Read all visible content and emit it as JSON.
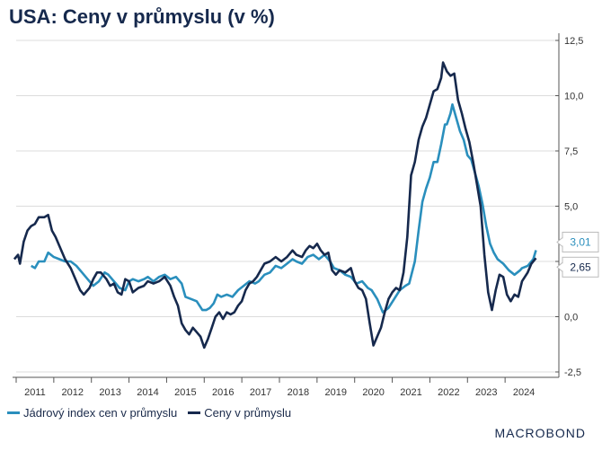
{
  "title": "USA: Ceny v průmyslu (v %)",
  "brand": "MACROBOND",
  "chart_data": {
    "type": "line",
    "ylim": [
      -2.5,
      12.5
    ],
    "yticks": [
      12.5,
      10.0,
      7.5,
      5.0,
      2.5,
      0.0,
      -2.5
    ],
    "ytick_labels": [
      "12,5",
      "10,0",
      "7,5",
      "5,0",
      "2,5",
      "0,0",
      "-2,5"
    ],
    "xlim": [
      2010.5,
      2024.5
    ],
    "xticks": [
      "2011",
      "2012",
      "2013",
      "2014",
      "2015",
      "2016",
      "2017",
      "2018",
      "2019",
      "2020",
      "2021",
      "2022",
      "2023",
      "2024"
    ],
    "grid": true,
    "legend_position": "bottom-left",
    "end_labels": [
      "3,01",
      "2,65"
    ],
    "series": [
      {
        "name": "Jádrový index cen v průmyslu",
        "color": "#2a8fbd",
        "end_label": "3,01",
        "points": [
          [
            2010.9,
            2.3
          ],
          [
            2011.0,
            2.2
          ],
          [
            2011.1,
            2.5
          ],
          [
            2011.25,
            2.5
          ],
          [
            2011.35,
            2.9
          ],
          [
            2011.5,
            2.7
          ],
          [
            2011.65,
            2.6
          ],
          [
            2011.8,
            2.5
          ],
          [
            2011.95,
            2.5
          ],
          [
            2012.1,
            2.3
          ],
          [
            2012.25,
            2.0
          ],
          [
            2012.4,
            1.7
          ],
          [
            2012.55,
            1.4
          ],
          [
            2012.7,
            1.6
          ],
          [
            2012.85,
            2.0
          ],
          [
            2012.95,
            1.9
          ],
          [
            2013.1,
            1.6
          ],
          [
            2013.25,
            1.3
          ],
          [
            2013.4,
            1.2
          ],
          [
            2013.5,
            1.6
          ],
          [
            2013.6,
            1.7
          ],
          [
            2013.75,
            1.6
          ],
          [
            2013.9,
            1.7
          ],
          [
            2014.0,
            1.8
          ],
          [
            2014.15,
            1.6
          ],
          [
            2014.3,
            1.8
          ],
          [
            2014.45,
            1.9
          ],
          [
            2014.6,
            1.7
          ],
          [
            2014.75,
            1.8
          ],
          [
            2014.9,
            1.5
          ],
          [
            2015.0,
            0.9
          ],
          [
            2015.15,
            0.8
          ],
          [
            2015.3,
            0.7
          ],
          [
            2015.45,
            0.3
          ],
          [
            2015.55,
            0.3
          ],
          [
            2015.65,
            0.4
          ],
          [
            2015.75,
            0.6
          ],
          [
            2015.85,
            1.0
          ],
          [
            2015.95,
            0.9
          ],
          [
            2016.1,
            1.0
          ],
          [
            2016.25,
            0.9
          ],
          [
            2016.4,
            1.2
          ],
          [
            2016.55,
            1.4
          ],
          [
            2016.7,
            1.6
          ],
          [
            2016.85,
            1.5
          ],
          [
            2016.95,
            1.6
          ],
          [
            2017.1,
            1.9
          ],
          [
            2017.25,
            2.0
          ],
          [
            2017.4,
            2.3
          ],
          [
            2017.55,
            2.2
          ],
          [
            2017.7,
            2.4
          ],
          [
            2017.85,
            2.6
          ],
          [
            2017.95,
            2.5
          ],
          [
            2018.1,
            2.4
          ],
          [
            2018.25,
            2.7
          ],
          [
            2018.4,
            2.8
          ],
          [
            2018.55,
            2.6
          ],
          [
            2018.7,
            2.8
          ],
          [
            2018.85,
            2.5
          ],
          [
            2018.95,
            2.2
          ],
          [
            2019.1,
            2.1
          ],
          [
            2019.25,
            1.9
          ],
          [
            2019.4,
            1.8
          ],
          [
            2019.55,
            1.5
          ],
          [
            2019.7,
            1.6
          ],
          [
            2019.85,
            1.3
          ],
          [
            2019.95,
            1.2
          ],
          [
            2020.1,
            0.8
          ],
          [
            2020.25,
            0.2
          ],
          [
            2020.4,
            0.4
          ],
          [
            2020.55,
            0.8
          ],
          [
            2020.7,
            1.2
          ],
          [
            2020.85,
            1.4
          ],
          [
            2020.95,
            1.5
          ],
          [
            2021.1,
            2.5
          ],
          [
            2021.2,
            3.9
          ],
          [
            2021.3,
            5.2
          ],
          [
            2021.4,
            5.8
          ],
          [
            2021.5,
            6.3
          ],
          [
            2021.6,
            7.0
          ],
          [
            2021.7,
            7.0
          ],
          [
            2021.8,
            7.8
          ],
          [
            2021.9,
            8.7
          ],
          [
            2021.95,
            8.7
          ],
          [
            2022.05,
            9.2
          ],
          [
            2022.1,
            9.6
          ],
          [
            2022.2,
            9.0
          ],
          [
            2022.3,
            8.4
          ],
          [
            2022.4,
            8.0
          ],
          [
            2022.5,
            7.3
          ],
          [
            2022.6,
            7.1
          ],
          [
            2022.7,
            6.5
          ],
          [
            2022.8,
            5.9
          ],
          [
            2022.9,
            5.1
          ],
          [
            2023.0,
            4.1
          ],
          [
            2023.1,
            3.3
          ],
          [
            2023.2,
            2.9
          ],
          [
            2023.3,
            2.6
          ],
          [
            2023.45,
            2.4
          ],
          [
            2023.6,
            2.1
          ],
          [
            2023.75,
            1.9
          ],
          [
            2023.9,
            2.1
          ],
          [
            2023.95,
            2.2
          ],
          [
            2024.1,
            2.3
          ],
          [
            2024.25,
            2.6
          ],
          [
            2024.32,
            3.01
          ]
        ]
      },
      {
        "name": "Ceny v průmyslu",
        "color": "#16294d",
        "end_label": "2,65",
        "points": [
          [
            2010.45,
            2.6
          ],
          [
            2010.55,
            2.8
          ],
          [
            2010.6,
            2.4
          ],
          [
            2010.7,
            3.4
          ],
          [
            2010.8,
            3.9
          ],
          [
            2010.9,
            4.1
          ],
          [
            2011.0,
            4.2
          ],
          [
            2011.1,
            4.5
          ],
          [
            2011.25,
            4.5
          ],
          [
            2011.35,
            4.6
          ],
          [
            2011.45,
            3.9
          ],
          [
            2011.55,
            3.6
          ],
          [
            2011.65,
            3.2
          ],
          [
            2011.8,
            2.6
          ],
          [
            2011.95,
            2.2
          ],
          [
            2012.1,
            1.6
          ],
          [
            2012.2,
            1.2
          ],
          [
            2012.3,
            1.0
          ],
          [
            2012.45,
            1.3
          ],
          [
            2012.55,
            1.7
          ],
          [
            2012.65,
            2.0
          ],
          [
            2012.75,
            2.0
          ],
          [
            2012.9,
            1.7
          ],
          [
            2013.0,
            1.4
          ],
          [
            2013.1,
            1.5
          ],
          [
            2013.2,
            1.1
          ],
          [
            2013.3,
            1.0
          ],
          [
            2013.4,
            1.7
          ],
          [
            2013.5,
            1.6
          ],
          [
            2013.6,
            1.1
          ],
          [
            2013.75,
            1.3
          ],
          [
            2013.9,
            1.4
          ],
          [
            2014.0,
            1.6
          ],
          [
            2014.15,
            1.5
          ],
          [
            2014.3,
            1.6
          ],
          [
            2014.45,
            1.8
          ],
          [
            2014.6,
            1.4
          ],
          [
            2014.7,
            0.9
          ],
          [
            2014.8,
            0.5
          ],
          [
            2014.9,
            -0.3
          ],
          [
            2015.0,
            -0.6
          ],
          [
            2015.1,
            -0.8
          ],
          [
            2015.2,
            -0.5
          ],
          [
            2015.3,
            -0.7
          ],
          [
            2015.4,
            -0.9
          ],
          [
            2015.5,
            -1.4
          ],
          [
            2015.6,
            -1.0
          ],
          [
            2015.7,
            -0.5
          ],
          [
            2015.8,
            0.0
          ],
          [
            2015.9,
            0.2
          ],
          [
            2016.0,
            -0.1
          ],
          [
            2016.1,
            0.2
          ],
          [
            2016.2,
            0.1
          ],
          [
            2016.3,
            0.2
          ],
          [
            2016.4,
            0.5
          ],
          [
            2016.5,
            0.7
          ],
          [
            2016.6,
            1.2
          ],
          [
            2016.7,
            1.5
          ],
          [
            2016.8,
            1.6
          ],
          [
            2016.9,
            1.8
          ],
          [
            2017.0,
            2.1
          ],
          [
            2017.1,
            2.4
          ],
          [
            2017.25,
            2.5
          ],
          [
            2017.4,
            2.7
          ],
          [
            2017.55,
            2.5
          ],
          [
            2017.7,
            2.7
          ],
          [
            2017.85,
            3.0
          ],
          [
            2017.95,
            2.8
          ],
          [
            2018.1,
            2.7
          ],
          [
            2018.2,
            3.0
          ],
          [
            2018.3,
            3.2
          ],
          [
            2018.4,
            3.1
          ],
          [
            2018.5,
            3.3
          ],
          [
            2018.6,
            3.0
          ],
          [
            2018.7,
            2.8
          ],
          [
            2018.8,
            2.9
          ],
          [
            2018.9,
            2.1
          ],
          [
            2019.0,
            1.9
          ],
          [
            2019.1,
            2.1
          ],
          [
            2019.25,
            2.0
          ],
          [
            2019.4,
            2.2
          ],
          [
            2019.5,
            1.6
          ],
          [
            2019.6,
            1.3
          ],
          [
            2019.7,
            1.2
          ],
          [
            2019.8,
            0.8
          ],
          [
            2019.9,
            -0.3
          ],
          [
            2020.0,
            -1.3
          ],
          [
            2020.1,
            -0.9
          ],
          [
            2020.2,
            -0.5
          ],
          [
            2020.3,
            0.2
          ],
          [
            2020.4,
            0.8
          ],
          [
            2020.5,
            1.1
          ],
          [
            2020.6,
            1.3
          ],
          [
            2020.7,
            1.2
          ],
          [
            2020.8,
            2.0
          ],
          [
            2020.9,
            3.6
          ],
          [
            2021.0,
            6.4
          ],
          [
            2021.1,
            7.0
          ],
          [
            2021.2,
            8.0
          ],
          [
            2021.3,
            8.6
          ],
          [
            2021.4,
            9.0
          ],
          [
            2021.5,
            9.6
          ],
          [
            2021.6,
            10.2
          ],
          [
            2021.7,
            10.3
          ],
          [
            2021.8,
            10.8
          ],
          [
            2021.85,
            11.5
          ],
          [
            2021.95,
            11.1
          ],
          [
            2022.05,
            10.9
          ],
          [
            2022.15,
            11.0
          ],
          [
            2022.25,
            9.8
          ],
          [
            2022.35,
            9.2
          ],
          [
            2022.45,
            8.5
          ],
          [
            2022.55,
            7.9
          ],
          [
            2022.65,
            7.0
          ],
          [
            2022.75,
            6.0
          ],
          [
            2022.85,
            5.0
          ],
          [
            2022.95,
            2.8
          ],
          [
            2023.05,
            1.1
          ],
          [
            2023.15,
            0.3
          ],
          [
            2023.25,
            1.2
          ],
          [
            2023.35,
            1.9
          ],
          [
            2023.45,
            1.8
          ],
          [
            2023.55,
            1.0
          ],
          [
            2023.65,
            0.7
          ],
          [
            2023.75,
            1.0
          ],
          [
            2023.85,
            0.9
          ],
          [
            2023.95,
            1.6
          ],
          [
            2024.1,
            2.0
          ],
          [
            2024.2,
            2.4
          ],
          [
            2024.32,
            2.65
          ]
        ]
      }
    ]
  }
}
